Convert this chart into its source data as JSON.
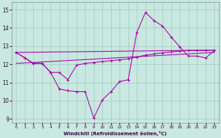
{
  "xlabel": "Windchill (Refroidissement éolien,°C)",
  "x_ticks": [
    0,
    1,
    2,
    3,
    4,
    5,
    6,
    7,
    8,
    9,
    10,
    11,
    12,
    13,
    14,
    15,
    16,
    17,
    18,
    19,
    20,
    21,
    22,
    23
  ],
  "ylim": [
    8.8,
    15.4
  ],
  "xlim": [
    -0.5,
    23.5
  ],
  "yticks": [
    9,
    10,
    11,
    12,
    13,
    14,
    15
  ],
  "background_color": "#c8e8e0",
  "line_color": "#aa00aa",
  "grid_color": "#a0c8c0",
  "line1_x": [
    0,
    1,
    2,
    3,
    4,
    5,
    6,
    7,
    8,
    9,
    10,
    11,
    12,
    13,
    14,
    15,
    16,
    17,
    18,
    19,
    20,
    21,
    22,
    23
  ],
  "line1_y": [
    12.65,
    12.35,
    12.05,
    12.05,
    11.55,
    10.65,
    10.55,
    10.5,
    10.5,
    9.05,
    10.05,
    10.5,
    11.05,
    11.15,
    13.75,
    14.85,
    14.4,
    14.1,
    13.5,
    12.95,
    12.45,
    12.45,
    12.35,
    12.75
  ],
  "line2_x": [
    0,
    1,
    2,
    3,
    4,
    5,
    6,
    7,
    8,
    9,
    10,
    11,
    12,
    13,
    14,
    15,
    16,
    17,
    18,
    19,
    20,
    21,
    22,
    23
  ],
  "line2_y": [
    12.65,
    12.35,
    12.05,
    12.05,
    11.55,
    11.55,
    11.15,
    11.95,
    12.05,
    12.1,
    12.15,
    12.2,
    12.25,
    12.3,
    12.4,
    12.5,
    12.57,
    12.63,
    12.68,
    12.72,
    12.76,
    12.76,
    12.76,
    12.78
  ],
  "line3_y": [
    12.65,
    12.78
  ],
  "line4_y": [
    12.05,
    12.65
  ]
}
